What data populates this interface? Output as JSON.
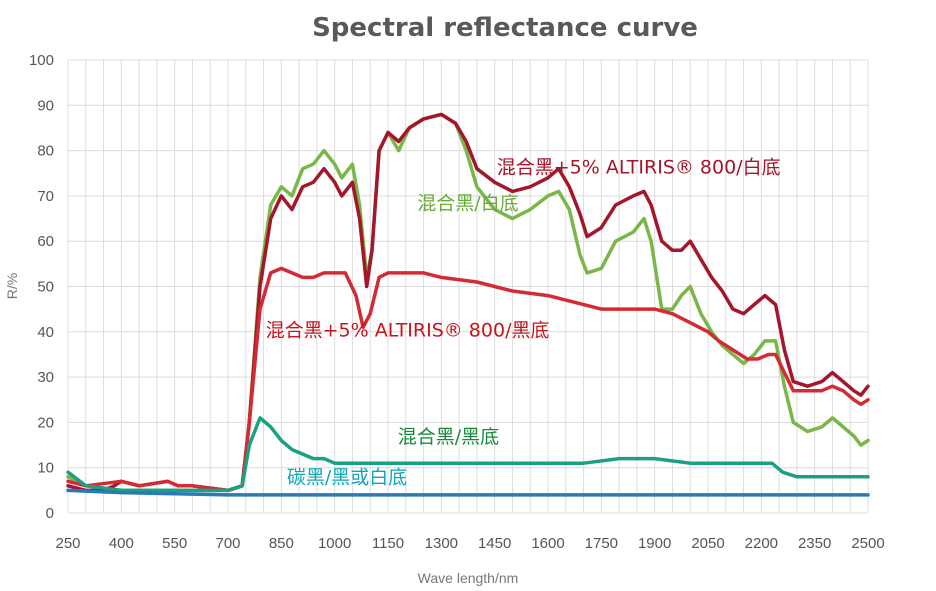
{
  "chart_data": {
    "type": "line",
    "title": "Spectral reflectance curve",
    "xlabel": "Wave length/nm",
    "ylabel": "R/%",
    "xlim": [
      250,
      2500
    ],
    "ylim": [
      0,
      100
    ],
    "x_ticks": [
      250,
      400,
      550,
      700,
      850,
      1000,
      1150,
      1300,
      1450,
      1600,
      1750,
      1900,
      2050,
      2200,
      2350,
      2500
    ],
    "y_ticks": [
      0,
      10,
      20,
      30,
      40,
      50,
      60,
      70,
      80,
      90,
      100
    ],
    "grid": "on",
    "legend": "none",
    "series": [
      {
        "name": "混合黑/白底",
        "color": "#7ab648",
        "points": [
          [
            250,
            8
          ],
          [
            300,
            6
          ],
          [
            400,
            5
          ],
          [
            550,
            5
          ],
          [
            700,
            5
          ],
          [
            740,
            6
          ],
          [
            760,
            20
          ],
          [
            790,
            52
          ],
          [
            820,
            68
          ],
          [
            850,
            72
          ],
          [
            880,
            70
          ],
          [
            910,
            76
          ],
          [
            940,
            77
          ],
          [
            970,
            80
          ],
          [
            1000,
            77
          ],
          [
            1020,
            74
          ],
          [
            1050,
            77
          ],
          [
            1070,
            68
          ],
          [
            1090,
            52
          ],
          [
            1105,
            58
          ],
          [
            1125,
            80
          ],
          [
            1150,
            84
          ],
          [
            1180,
            80
          ],
          [
            1210,
            85
          ],
          [
            1250,
            87
          ],
          [
            1300,
            88
          ],
          [
            1340,
            86
          ],
          [
            1370,
            80
          ],
          [
            1400,
            72
          ],
          [
            1450,
            67
          ],
          [
            1500,
            65
          ],
          [
            1550,
            67
          ],
          [
            1600,
            70
          ],
          [
            1630,
            71
          ],
          [
            1660,
            67
          ],
          [
            1690,
            57
          ],
          [
            1710,
            53
          ],
          [
            1750,
            54
          ],
          [
            1790,
            60
          ],
          [
            1840,
            62
          ],
          [
            1870,
            65
          ],
          [
            1890,
            60
          ],
          [
            1920,
            45
          ],
          [
            1950,
            45
          ],
          [
            1975,
            48
          ],
          [
            2000,
            50
          ],
          [
            2030,
            44
          ],
          [
            2060,
            40
          ],
          [
            2090,
            37
          ],
          [
            2120,
            35
          ],
          [
            2150,
            33
          ],
          [
            2180,
            35
          ],
          [
            2210,
            38
          ],
          [
            2240,
            38
          ],
          [
            2265,
            28
          ],
          [
            2290,
            20
          ],
          [
            2330,
            18
          ],
          [
            2370,
            19
          ],
          [
            2400,
            21
          ],
          [
            2430,
            19
          ],
          [
            2460,
            17
          ],
          [
            2480,
            15
          ],
          [
            2500,
            16
          ]
        ]
      },
      {
        "name": "混合黑+5% ALTIRIS® 800/白底",
        "color": "#a3162b",
        "points": [
          [
            250,
            6
          ],
          [
            300,
            5
          ],
          [
            350,
            5
          ],
          [
            380,
            6
          ],
          [
            400,
            7
          ],
          [
            450,
            6
          ],
          [
            530,
            7
          ],
          [
            560,
            6
          ],
          [
            600,
            6
          ],
          [
            700,
            5
          ],
          [
            740,
            6
          ],
          [
            760,
            20
          ],
          [
            790,
            50
          ],
          [
            820,
            65
          ],
          [
            850,
            70
          ],
          [
            880,
            67
          ],
          [
            910,
            72
          ],
          [
            940,
            73
          ],
          [
            970,
            76
          ],
          [
            1000,
            73
          ],
          [
            1020,
            70
          ],
          [
            1050,
            73
          ],
          [
            1070,
            65
          ],
          [
            1090,
            50
          ],
          [
            1105,
            58
          ],
          [
            1125,
            80
          ],
          [
            1150,
            84
          ],
          [
            1180,
            82
          ],
          [
            1210,
            85
          ],
          [
            1250,
            87
          ],
          [
            1300,
            88
          ],
          [
            1340,
            86
          ],
          [
            1370,
            82
          ],
          [
            1400,
            76
          ],
          [
            1450,
            73
          ],
          [
            1500,
            71
          ],
          [
            1550,
            72
          ],
          [
            1600,
            74
          ],
          [
            1630,
            76
          ],
          [
            1660,
            72
          ],
          [
            1690,
            66
          ],
          [
            1710,
            61
          ],
          [
            1750,
            63
          ],
          [
            1790,
            68
          ],
          [
            1840,
            70
          ],
          [
            1870,
            71
          ],
          [
            1890,
            68
          ],
          [
            1920,
            60
          ],
          [
            1950,
            58
          ],
          [
            1975,
            58
          ],
          [
            2000,
            60
          ],
          [
            2030,
            56
          ],
          [
            2060,
            52
          ],
          [
            2090,
            49
          ],
          [
            2120,
            45
          ],
          [
            2150,
            44
          ],
          [
            2180,
            46
          ],
          [
            2210,
            48
          ],
          [
            2240,
            46
          ],
          [
            2265,
            36
          ],
          [
            2290,
            29
          ],
          [
            2330,
            28
          ],
          [
            2370,
            29
          ],
          [
            2400,
            31
          ],
          [
            2430,
            29
          ],
          [
            2460,
            27
          ],
          [
            2480,
            26
          ],
          [
            2500,
            28
          ]
        ]
      },
      {
        "name": "混合黑+5% ALTIRIS® 800/黑底",
        "color": "#d42a34",
        "points": [
          [
            250,
            7
          ],
          [
            300,
            6
          ],
          [
            400,
            7
          ],
          [
            450,
            6
          ],
          [
            530,
            7
          ],
          [
            560,
            6
          ],
          [
            600,
            6
          ],
          [
            700,
            5
          ],
          [
            740,
            6
          ],
          [
            760,
            20
          ],
          [
            790,
            45
          ],
          [
            820,
            53
          ],
          [
            850,
            54
          ],
          [
            880,
            53
          ],
          [
            910,
            52
          ],
          [
            940,
            52
          ],
          [
            970,
            53
          ],
          [
            1000,
            53
          ],
          [
            1030,
            53
          ],
          [
            1060,
            48
          ],
          [
            1080,
            41
          ],
          [
            1100,
            44
          ],
          [
            1125,
            52
          ],
          [
            1150,
            53
          ],
          [
            1200,
            53
          ],
          [
            1250,
            53
          ],
          [
            1300,
            52
          ],
          [
            1400,
            51
          ],
          [
            1500,
            49
          ],
          [
            1600,
            48
          ],
          [
            1650,
            47
          ],
          [
            1700,
            46
          ],
          [
            1750,
            45
          ],
          [
            1800,
            45
          ],
          [
            1850,
            45
          ],
          [
            1900,
            45
          ],
          [
            1950,
            44
          ],
          [
            2000,
            42
          ],
          [
            2050,
            40
          ],
          [
            2080,
            38
          ],
          [
            2120,
            36
          ],
          [
            2160,
            34
          ],
          [
            2190,
            34
          ],
          [
            2220,
            35
          ],
          [
            2240,
            35
          ],
          [
            2265,
            31
          ],
          [
            2290,
            27
          ],
          [
            2330,
            27
          ],
          [
            2370,
            27
          ],
          [
            2400,
            28
          ],
          [
            2430,
            27
          ],
          [
            2460,
            25
          ],
          [
            2480,
            24
          ],
          [
            2500,
            25
          ]
        ]
      },
      {
        "name": "混合黑/黑底",
        "color": "#1aa083",
        "points": [
          [
            250,
            9
          ],
          [
            300,
            6
          ],
          [
            400,
            5
          ],
          [
            550,
            5
          ],
          [
            700,
            5
          ],
          [
            740,
            6
          ],
          [
            760,
            15
          ],
          [
            790,
            21
          ],
          [
            820,
            19
          ],
          [
            850,
            16
          ],
          [
            880,
            14
          ],
          [
            910,
            13
          ],
          [
            940,
            12
          ],
          [
            970,
            12
          ],
          [
            1000,
            11
          ],
          [
            1100,
            11
          ],
          [
            1200,
            11
          ],
          [
            1300,
            11
          ],
          [
            1400,
            11
          ],
          [
            1500,
            11
          ],
          [
            1600,
            11
          ],
          [
            1700,
            11
          ],
          [
            1800,
            12
          ],
          [
            1900,
            12
          ],
          [
            2000,
            11
          ],
          [
            2100,
            11
          ],
          [
            2200,
            11
          ],
          [
            2230,
            11
          ],
          [
            2260,
            9
          ],
          [
            2300,
            8
          ],
          [
            2400,
            8
          ],
          [
            2500,
            8
          ]
        ]
      },
      {
        "name": "碳黑/黑或白底",
        "color": "#2a7bb5",
        "points": [
          [
            250,
            5
          ],
          [
            400,
            4.5
          ],
          [
            700,
            4
          ],
          [
            1000,
            4
          ],
          [
            1500,
            4
          ],
          [
            2000,
            4
          ],
          [
            2500,
            4
          ]
        ]
      }
    ],
    "annotations": [
      {
        "text": "混合黑+5% ALTIRIS® 800/白底",
        "color": "#a3162b",
        "x": 1855,
        "y": 75
      },
      {
        "text": "混合黑/白底",
        "color": "#6aaa3a",
        "x": 1375,
        "y": 67
      },
      {
        "text": "混合黑+5% ALTIRIS® 800/黑底",
        "color": "#c8141e",
        "x": 1205,
        "y": 39
      },
      {
        "text": "混合黑/黑底",
        "color": "#1a8a3a",
        "x": 1320,
        "y": 15.5
      },
      {
        "text": "碳黑/黑或白底",
        "color": "#12a5b8",
        "x": 1035,
        "y": 6.5
      }
    ]
  }
}
